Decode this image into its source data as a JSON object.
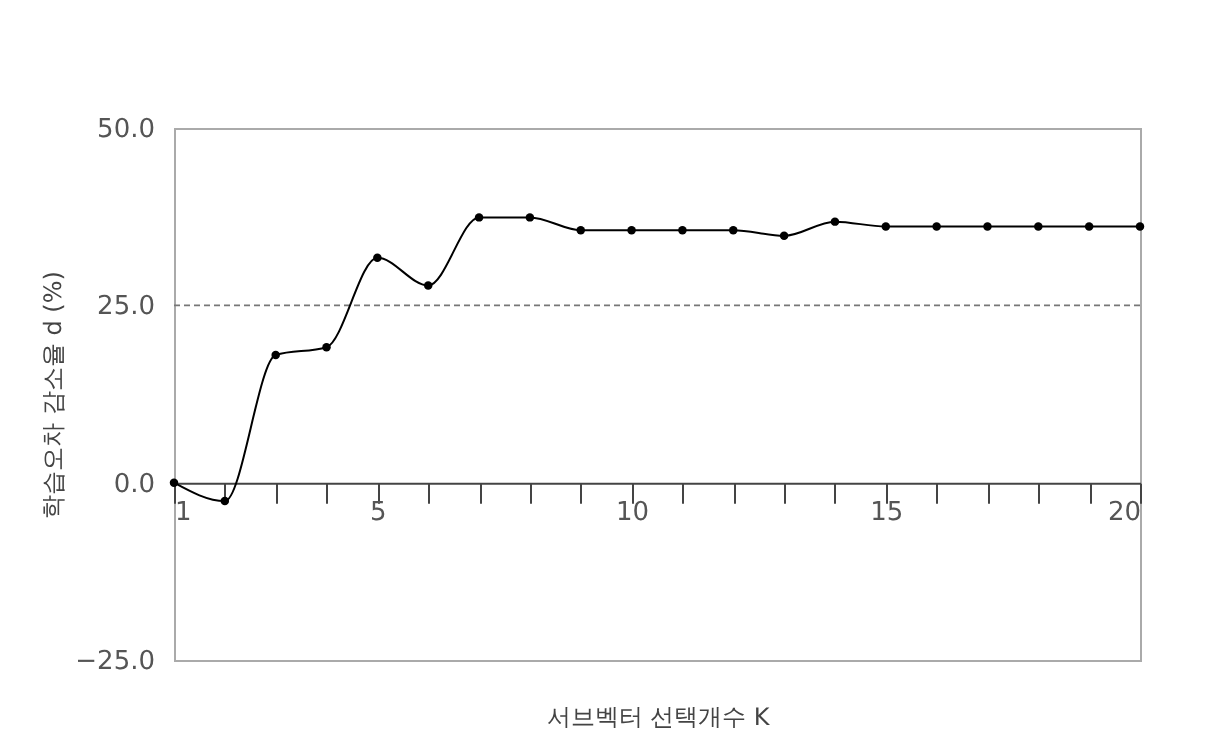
{
  "chart_data": {
    "type": "line",
    "xlabel": "서브벡터 선택개수 K",
    "ylabel": "학습오차 감소율 d (%)",
    "x": [
      1,
      2,
      3,
      4,
      5,
      6,
      7,
      8,
      9,
      10,
      11,
      12,
      13,
      14,
      15,
      16,
      17,
      18,
      19,
      20
    ],
    "series": [
      {
        "color": "#000000",
        "values": [
          0,
          -2.6,
          18.0,
          19.1,
          31.7,
          27.8,
          37.4,
          37.4,
          35.6,
          35.6,
          35.6,
          35.6,
          34.8,
          36.8,
          36.1,
          36.1,
          36.1,
          36.1,
          36.1,
          36.1
        ]
      }
    ],
    "xlim": [
      1,
      20
    ],
    "xticks": [
      1,
      {
        "value": 2,
        "label": null
      },
      {
        "value": 3,
        "label": null
      },
      {
        "value": 4,
        "label": null
      },
      5,
      {
        "value": 6,
        "label": null
      },
      {
        "value": 7,
        "label": null
      },
      {
        "value": 8,
        "label": null
      },
      {
        "value": 9,
        "label": null
      },
      10,
      {
        "value": 11,
        "label": null
      },
      {
        "value": 12,
        "label": null
      },
      {
        "value": 13,
        "label": null
      },
      {
        "value": 14,
        "label": null
      },
      15,
      {
        "value": 16,
        "label": null
      },
      {
        "value": 17,
        "label": null
      },
      {
        "value": 18,
        "label": null
      },
      {
        "value": 19,
        "label": null
      },
      20
    ],
    "ylim": [
      -25,
      50
    ],
    "yticks": [
      {
        "value": -25,
        "label": "−25.0"
      },
      {
        "value": 0,
        "label": "0.0"
      },
      {
        "value": 25,
        "label": "25.0"
      },
      {
        "value": 50,
        "label": "50.0"
      }
    ],
    "ref_lines": [
      {
        "axis": "y",
        "value": 25,
        "color": "#777777",
        "line_style": "dashed"
      }
    ],
    "grid": false,
    "marker": "circle",
    "line_style": "solid"
  }
}
